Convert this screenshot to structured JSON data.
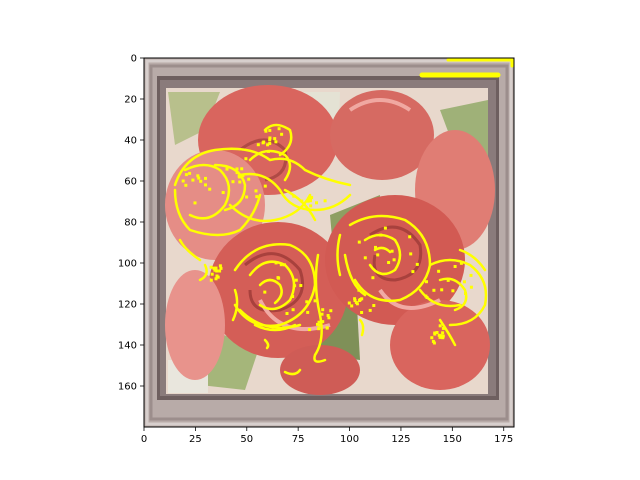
{
  "chart_data": {
    "type": "image",
    "title": "",
    "xlabel": "",
    "ylabel": "",
    "xlim": [
      0,
      180
    ],
    "ylim": [
      180,
      0
    ],
    "grid": false,
    "x_ticks": [
      0,
      25,
      50,
      75,
      100,
      125,
      150,
      175
    ],
    "y_ticks": [
      0,
      20,
      40,
      60,
      80,
      100,
      120,
      140,
      160
    ],
    "content": "rose bouquet photo in gray frame with yellow edge overlay",
    "colors": {
      "overlay": "#ffff00",
      "frame": "#b8aba8",
      "frame_inner": "#6e5f5f",
      "rose": "#d9655e",
      "rose_light": "#e8938c",
      "rose_dark": "#a8413d",
      "leaf": "#98a86c",
      "background_light": "#e8e3d9"
    }
  }
}
